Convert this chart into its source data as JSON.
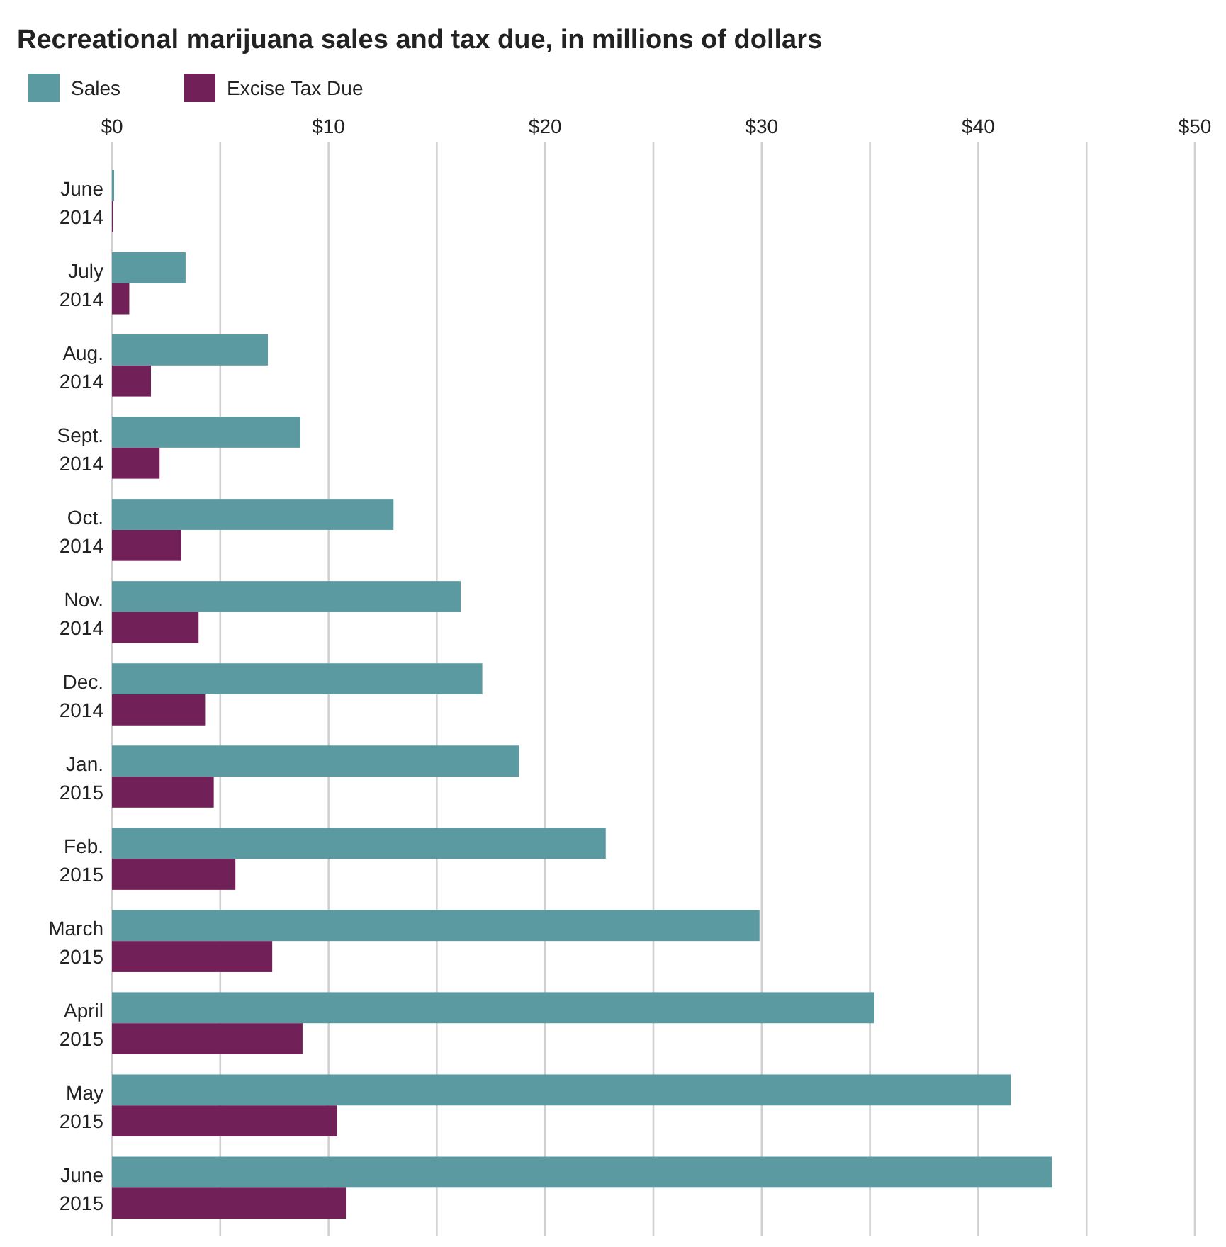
{
  "chart_data": {
    "type": "bar",
    "orientation": "horizontal",
    "title": "Recreational marijuana sales and tax due, in millions of dollars",
    "categories": [
      "June 2014",
      "July 2014",
      "Aug. 2014",
      "Sept. 2014",
      "Oct. 2014",
      "Nov. 2014",
      "Dec. 2014",
      "Jan. 2015",
      "Feb. 2015",
      "March 2015",
      "April 2015",
      "May 2015",
      "June 2015"
    ],
    "series": [
      {
        "name": "Sales",
        "color": "#5a9aa0",
        "values": [
          0.1,
          3.4,
          7.2,
          8.7,
          13.0,
          16.1,
          17.1,
          18.8,
          22.8,
          29.9,
          35.2,
          41.5,
          43.4
        ]
      },
      {
        "name": "Excise Tax Due",
        "color": "#722058",
        "values": [
          0.05,
          0.8,
          1.8,
          2.2,
          3.2,
          4.0,
          4.3,
          4.7,
          5.7,
          7.4,
          8.8,
          10.4,
          10.8
        ]
      }
    ],
    "xlim": [
      0,
      50
    ],
    "xticks": [
      {
        "value": 0,
        "label": "$0"
      },
      {
        "value": 5,
        "label": null
      },
      {
        "value": 10,
        "label": "$10"
      },
      {
        "value": 15,
        "label": null
      },
      {
        "value": 20,
        "label": "$20"
      },
      {
        "value": 25,
        "label": null
      },
      {
        "value": 30,
        "label": "$30"
      },
      {
        "value": 35,
        "label": null
      },
      {
        "value": 40,
        "label": "$40"
      },
      {
        "value": 45,
        "label": null
      },
      {
        "value": 50,
        "label": "$50"
      }
    ],
    "grid": "x",
    "legend": "top left"
  }
}
